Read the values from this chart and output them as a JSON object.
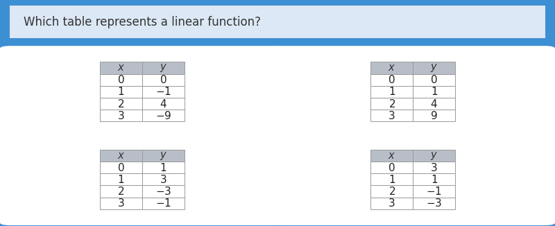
{
  "title": "Which table represents a linear function?",
  "title_bg": "#dce8f5",
  "main_bg": "#3d8fd4",
  "card_bg": "#ffffff",
  "header_bg": "#b8bec8",
  "cell_bg": "#ffffff",
  "border_color": "#aaaaaa",
  "tables": [
    {
      "x": [
        0,
        1,
        2,
        3
      ],
      "y": [
        "0",
        "{-1}",
        "4",
        "{-9}"
      ]
    },
    {
      "x": [
        0,
        1,
        2,
        3
      ],
      "y": [
        "0",
        "1",
        "4",
        "9"
      ]
    },
    {
      "x": [
        0,
        1,
        2,
        3
      ],
      "y": [
        "1",
        "3",
        "{-3}",
        "{-1}"
      ]
    },
    {
      "x": [
        0,
        1,
        2,
        3
      ],
      "y": [
        "3",
        "1",
        "{-1}",
        "{-3}"
      ]
    }
  ],
  "figsize": [
    8.0,
    3.26
  ],
  "dpi": 100
}
